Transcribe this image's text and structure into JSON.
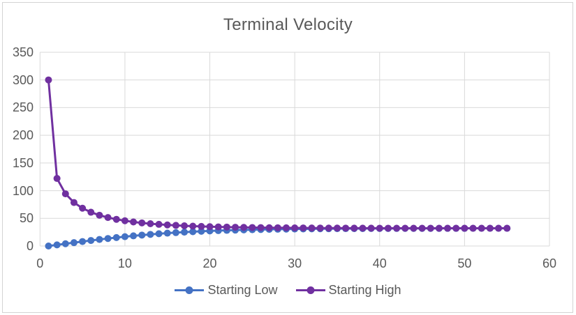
{
  "chart_data": {
    "type": "line",
    "title": "Terminal Velocity",
    "xlabel": "",
    "ylabel": "",
    "xlim": [
      0,
      60
    ],
    "ylim": [
      0,
      350
    ],
    "x_ticks": [
      0,
      10,
      20,
      30,
      40,
      50,
      60
    ],
    "y_ticks": [
      0,
      50,
      100,
      150,
      200,
      250,
      300,
      350
    ],
    "grid": true,
    "legend_position": "bottom",
    "marker": "circle",
    "grid_color": "#d9d9d9",
    "text_color": "#595959",
    "border_color": "#d3d3d3",
    "background_color": "#ffffff",
    "x": [
      1,
      2,
      3,
      4,
      5,
      6,
      7,
      8,
      9,
      10,
      11,
      12,
      13,
      14,
      15,
      16,
      17,
      18,
      19,
      20,
      21,
      22,
      23,
      24,
      25,
      26,
      27,
      28,
      29,
      30,
      31,
      32,
      33,
      34,
      35,
      36,
      37,
      38,
      39,
      40,
      41,
      42,
      43,
      44,
      45,
      46,
      47,
      48,
      49,
      50,
      51,
      52,
      53,
      54,
      55
    ],
    "series": [
      {
        "name": "Starting Low",
        "color": "#4472c4",
        "values": [
          0,
          2.05,
          4.09,
          6.1,
          8.08,
          9.99,
          11.84,
          13.61,
          15.29,
          16.87,
          18.35,
          19.72,
          20.99,
          22.16,
          23.23,
          24.19,
          25.07,
          25.86,
          26.57,
          27.21,
          27.78,
          28.28,
          28.73,
          29.13,
          29.48,
          29.79,
          30.06,
          30.3,
          30.51,
          30.7,
          30.86,
          31.01,
          31.13,
          31.24,
          31.34,
          31.42,
          31.49,
          31.55,
          31.61,
          31.66,
          31.7,
          31.74,
          31.77,
          31.8,
          31.82,
          31.85,
          31.86,
          31.88,
          31.9,
          31.91,
          31.92,
          31.93,
          31.94,
          31.95,
          31.95
        ]
      },
      {
        "name": "Starting High",
        "color": "#7030a0",
        "values": [
          300,
          122.05,
          94.31,
          78.57,
          68.27,
          61,
          55.6,
          51.47,
          48.22,
          45.62,
          43.5,
          41.77,
          40.32,
          39.12,
          38.11,
          37.25,
          36.52,
          35.9,
          35.37,
          34.92,
          34.53,
          34.19,
          33.9,
          33.65,
          33.43,
          33.25,
          33.08,
          32.94,
          32.82,
          32.71,
          32.62,
          32.54,
          32.47,
          32.41,
          32.35,
          32.31,
          32.27,
          32.23,
          32.2,
          32.18,
          32.15,
          32.13,
          32.12,
          32.1,
          32.09,
          32.08,
          32.07,
          32.06,
          32.05,
          32.05,
          32.04,
          32.04,
          32.03,
          32.03,
          32.03
        ]
      }
    ]
  }
}
